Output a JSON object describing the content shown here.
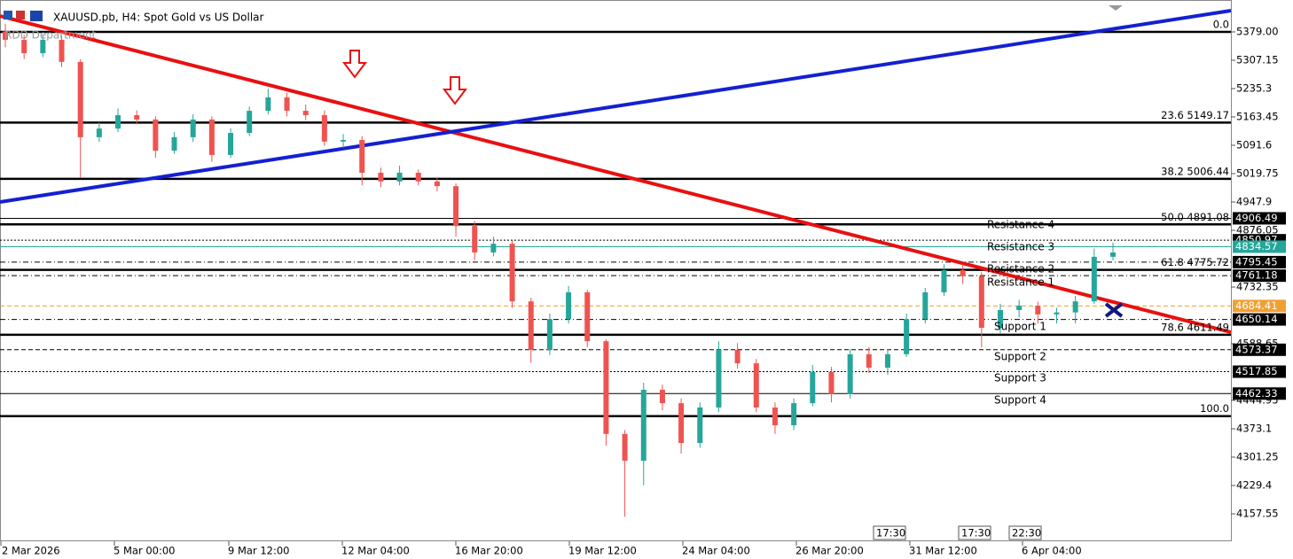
{
  "chart_data": {
    "type": "candlestick",
    "title": "XAUUSD.pb, H4:  Spot Gold vs US Dollar",
    "subtitle": "RDD Department",
    "open": [
      5380,
      5359,
      5325,
      5359,
      5303,
      5112,
      5134,
      5168,
      5157,
      5078,
      5112,
      5157,
      5067,
      5123,
      5179,
      5213,
      5179,
      5168,
      5101,
      5105,
      5022,
      5000,
      5022,
      5000,
      4988,
      4887,
      4820,
      4842,
      4696,
      4573,
      4651,
      4719,
      4595,
      4360,
      4292,
      4472,
      4438,
      4337,
      4427,
      4573,
      4539,
      4427,
      4382,
      4438,
      4517,
      4461,
      4562,
      4528,
      4562,
      4651,
      4719,
      4775,
      4760,
      4629,
      4674,
      4685,
      4663,
      4668,
      4696,
      4809
    ],
    "high": [
      5400,
      5372,
      5372,
      5370,
      5310,
      5150,
      5185,
      5180,
      5165,
      5125,
      5170,
      5165,
      5135,
      5190,
      5235,
      5225,
      5195,
      5180,
      5120,
      5115,
      5035,
      5040,
      5030,
      5010,
      4995,
      4900,
      4860,
      4850,
      4705,
      4665,
      4735,
      4725,
      4600,
      4370,
      4490,
      4485,
      4450,
      4440,
      4595,
      4590,
      4550,
      4440,
      4450,
      4535,
      4530,
      4575,
      4580,
      4575,
      4665,
      4730,
      4790,
      4790,
      4770,
      4690,
      4700,
      4695,
      4680,
      4710,
      4830,
      4845
    ],
    "low": [
      5340,
      5310,
      5315,
      5290,
      5010,
      5100,
      5125,
      5145,
      5060,
      5070,
      5100,
      5050,
      5060,
      5115,
      5170,
      5165,
      5155,
      5090,
      5085,
      4990,
      4985,
      4990,
      4990,
      4975,
      4860,
      4800,
      4810,
      4680,
      4540,
      4560,
      4640,
      4580,
      4330,
      4150,
      4230,
      4420,
      4310,
      4325,
      4415,
      4525,
      4415,
      4360,
      4370,
      4430,
      4440,
      4450,
      4515,
      4510,
      4555,
      4640,
      4710,
      4740,
      4580,
      4615,
      4655,
      4640,
      4640,
      4640,
      4690,
      4800
    ],
    "close": [
      5359,
      5325,
      5359,
      5303,
      5112,
      5134,
      5168,
      5157,
      5078,
      5112,
      5157,
      5067,
      5123,
      5179,
      5213,
      5179,
      5168,
      5101,
      5105,
      5022,
      5000,
      5022,
      5000,
      4988,
      4887,
      4820,
      4842,
      4696,
      4573,
      4651,
      4719,
      4595,
      4360,
      4292,
      4472,
      4438,
      4337,
      4427,
      4573,
      4539,
      4427,
      4382,
      4438,
      4517,
      4461,
      4562,
      4528,
      4562,
      4651,
      4719,
      4775,
      4760,
      4629,
      4674,
      4685,
      4663,
      4668,
      4696,
      4809,
      4820
    ],
    "up_color": "#26a69a",
    "down_color": "#ef5350",
    "ylim": [
      4090.19,
      5459.83
    ],
    "yticks": [
      {
        "value": 5379,
        "label": "5379.00"
      },
      5307.15,
      5235.3,
      5163.45,
      5091.6,
      5019.75,
      4947.9,
      4876.05,
      4732.35,
      4588.65,
      4444.95,
      4373.1,
      4301.25,
      4229.4,
      4157.55
    ],
    "x_labels": [
      "2 Mar 2026",
      "5 Mar 00:00",
      "9 Mar 12:00",
      "12 Mar 04:00",
      "16 Mar 20:00",
      "19 Mar 12:00",
      "24 Mar 04:00",
      "26 Mar 20:00",
      "31 Mar 12:00",
      "6 Apr 04:00"
    ],
    "fib_levels": [
      {
        "label": "0.0",
        "price": 5379.1
      },
      {
        "label": "23.6 5149.17",
        "price": 5149.17
      },
      {
        "label": "38.2 5006.44",
        "price": 5006.44
      },
      {
        "label": "50.0 4891.08",
        "price": 4891.08
      },
      {
        "label": "61.8 4775.72",
        "price": 4775.72
      },
      {
        "label": "78.6 4611.49",
        "price": 4611.49
      },
      {
        "label": "100.0",
        "price": 4405.1
      }
    ],
    "price_levels": [
      {
        "price": 4906.49,
        "style": "solid",
        "color": "#000000"
      },
      {
        "price": 4850.97,
        "style": "dotted",
        "color": "#000000"
      },
      {
        "price": 4834.57,
        "style": "solid",
        "color": "#26a69a"
      },
      {
        "price": 4795.45,
        "style": "dashdot",
        "color": "#000000"
      },
      {
        "price": 4761.18,
        "style": "dashdot",
        "color": "#000000"
      },
      {
        "price": 4684.41,
        "style": "dashed",
        "color": "#f0a030"
      },
      {
        "price": 4650.14,
        "style": "dashdot",
        "color": "#000000"
      },
      {
        "price": 4573.37,
        "style": "dashed",
        "color": "#000000"
      },
      {
        "price": 4517.85,
        "style": "dotted",
        "color": "#000000"
      },
      {
        "price": 4462.33,
        "style": "solid",
        "color": "#000000"
      }
    ],
    "annotations": [
      "Resistance 4",
      "Resistance 3",
      "Resistance 2",
      "Resistance 1",
      "Support 1",
      "Support 2",
      "Support 3",
      "Support 4"
    ],
    "time_markers": [
      "17:30",
      "17:30",
      "22:30"
    ]
  }
}
